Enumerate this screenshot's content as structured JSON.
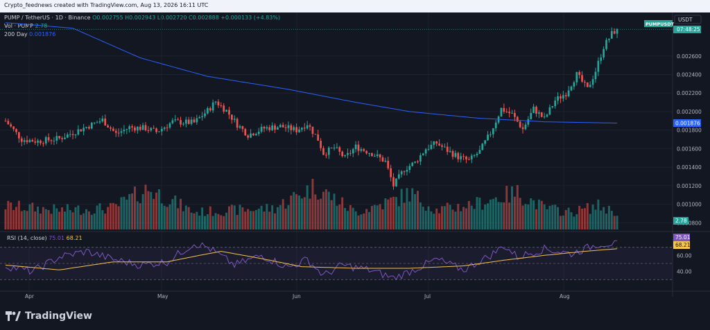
{
  "header": {
    "text": "Crypto_feednews created with TradingView.com, Aug 13, 2026 16:11 UTC"
  },
  "legend": {
    "symbol": "PUMP / TetherUS · 1D · Binance",
    "ohlc": "O0.002755 H0.002943 L0.002720 C0.002888 +0.000133 (+4.83%)",
    "vol_label": "Vol · PUMP",
    "vol_value": "2.78",
    "ma_label": "200 Day",
    "ma_value": "0.001876",
    "rsi_label": "RSI (14, close)",
    "rsi_value": "75.01",
    "rsi_ma_value": "68.21"
  },
  "price_axis": {
    "currency": "USDT",
    "ticks": [
      "0.002600",
      "0.002400",
      "0.002200",
      "0.002000",
      "0.001800",
      "0.001600",
      "0.001400",
      "0.001200",
      "0.001000",
      "0.000800"
    ],
    "last_label": "PUMPUSDT",
    "countdown": "07:48:25",
    "ma_value": "0.001876",
    "vol_badge": "2.78"
  },
  "rsi_axis": {
    "ticks": [
      "60.00",
      "40.00"
    ],
    "rsi_value": "75.01",
    "rsi_ma_value": "68.21"
  },
  "time_axis": {
    "labels": [
      "Apr",
      "May",
      "Jun",
      "Jul",
      "Aug"
    ]
  },
  "branding": {
    "text": "TradingView"
  },
  "colors": {
    "up": "#26a69a",
    "down": "#ef5350",
    "ma": "#2962ff",
    "rsi": "#7e57c2",
    "rsi_ma": "#f7c548"
  },
  "chart_data": {
    "type": "candlestick",
    "title": "PUMP / TetherUS · 1D · Binance",
    "price_ylim": [
      0.00078,
      0.00295
    ],
    "last_price": 0.002888,
    "ma200_last": 0.001876,
    "candle_close_path": [
      [
        0,
        0.0019
      ],
      [
        6,
        0.0017
      ],
      [
        12,
        0.00168
      ],
      [
        20,
        0.00171
      ],
      [
        28,
        0.00181
      ],
      [
        36,
        0.00191
      ],
      [
        41,
        0.00176
      ],
      [
        46,
        0.00183
      ],
      [
        52,
        0.00182
      ],
      [
        56,
        0.00178
      ],
      [
        62,
        0.00189
      ],
      [
        70,
        0.00188
      ],
      [
        75,
        0.00201
      ],
      [
        78,
        0.00211
      ],
      [
        82,
        0.00201
      ],
      [
        86,
        0.00186
      ],
      [
        90,
        0.00175
      ],
      [
        96,
        0.00182
      ],
      [
        102,
        0.00184
      ],
      [
        108,
        0.0018
      ],
      [
        112,
        0.00187
      ],
      [
        116,
        0.0017
      ],
      [
        118,
        0.00155
      ],
      [
        122,
        0.00161
      ],
      [
        126,
        0.0015
      ],
      [
        130,
        0.00162
      ],
      [
        136,
        0.00155
      ],
      [
        141,
        0.00146
      ],
      [
        144,
        0.0012
      ],
      [
        148,
        0.00138
      ],
      [
        152,
        0.00145
      ],
      [
        156,
        0.0016
      ],
      [
        160,
        0.00166
      ],
      [
        164,
        0.00158
      ],
      [
        168,
        0.00151
      ],
      [
        172,
        0.00147
      ],
      [
        176,
        0.00157
      ],
      [
        180,
        0.00177
      ],
      [
        184,
        0.00203
      ],
      [
        188,
        0.00197
      ],
      [
        192,
        0.00181
      ],
      [
        196,
        0.00203
      ],
      [
        200,
        0.00192
      ],
      [
        204,
        0.00212
      ],
      [
        208,
        0.0022
      ],
      [
        212,
        0.0024
      ],
      [
        216,
        0.00224
      ],
      [
        219,
        0.00244
      ],
      [
        222,
        0.0027
      ],
      [
        225,
        0.00284
      ],
      [
        227,
        0.00289
      ]
    ],
    "ma200_path": [
      [
        0,
        0.00296
      ],
      [
        25,
        0.0029
      ],
      [
        50,
        0.00258
      ],
      [
        75,
        0.00238
      ],
      [
        105,
        0.00224
      ],
      [
        130,
        0.0021
      ],
      [
        150,
        0.002
      ],
      [
        175,
        0.00193
      ],
      [
        200,
        0.00189
      ],
      [
        227,
        0.001876
      ]
    ],
    "volume_path": [
      [
        0,
        0.55
      ],
      [
        20,
        0.45
      ],
      [
        40,
        0.5
      ],
      [
        53,
        0.95
      ],
      [
        70,
        0.4
      ],
      [
        100,
        0.5
      ],
      [
        110,
        0.85
      ],
      [
        115,
        1.0
      ],
      [
        130,
        0.4
      ],
      [
        145,
        0.7
      ],
      [
        150,
        0.85
      ],
      [
        160,
        0.45
      ],
      [
        175,
        0.6
      ],
      [
        180,
        0.7
      ],
      [
        190,
        0.85
      ],
      [
        200,
        0.5
      ],
      [
        210,
        0.4
      ],
      [
        220,
        0.55
      ],
      [
        227,
        0.4
      ]
    ],
    "rsi_path": [
      [
        0,
        47
      ],
      [
        10,
        40
      ],
      [
        20,
        58
      ],
      [
        30,
        65
      ],
      [
        40,
        55
      ],
      [
        50,
        48
      ],
      [
        60,
        52
      ],
      [
        70,
        75
      ],
      [
        75,
        70
      ],
      [
        85,
        48
      ],
      [
        95,
        60
      ],
      [
        105,
        45
      ],
      [
        112,
        55
      ],
      [
        118,
        35
      ],
      [
        125,
        48
      ],
      [
        135,
        42
      ],
      [
        144,
        32
      ],
      [
        150,
        40
      ],
      [
        160,
        55
      ],
      [
        170,
        42
      ],
      [
        180,
        60
      ],
      [
        185,
        72
      ],
      [
        190,
        58
      ],
      [
        200,
        68
      ],
      [
        210,
        62
      ],
      [
        220,
        74
      ],
      [
        227,
        75
      ]
    ],
    "rsi_ma_path": [
      [
        0,
        48
      ],
      [
        20,
        42
      ],
      [
        40,
        52
      ],
      [
        60,
        52
      ],
      [
        72,
        60
      ],
      [
        80,
        65
      ],
      [
        95,
        56
      ],
      [
        110,
        46
      ],
      [
        130,
        44
      ],
      [
        150,
        44
      ],
      [
        170,
        47
      ],
      [
        185,
        54
      ],
      [
        200,
        60
      ],
      [
        215,
        65
      ],
      [
        227,
        68.21
      ]
    ],
    "rsi_ylim": [
      20,
      80
    ],
    "rsi_levels": [
      70,
      50,
      30
    ],
    "time_labels": [
      "Apr",
      "May",
      "Jun",
      "Jul",
      "Aug"
    ]
  }
}
